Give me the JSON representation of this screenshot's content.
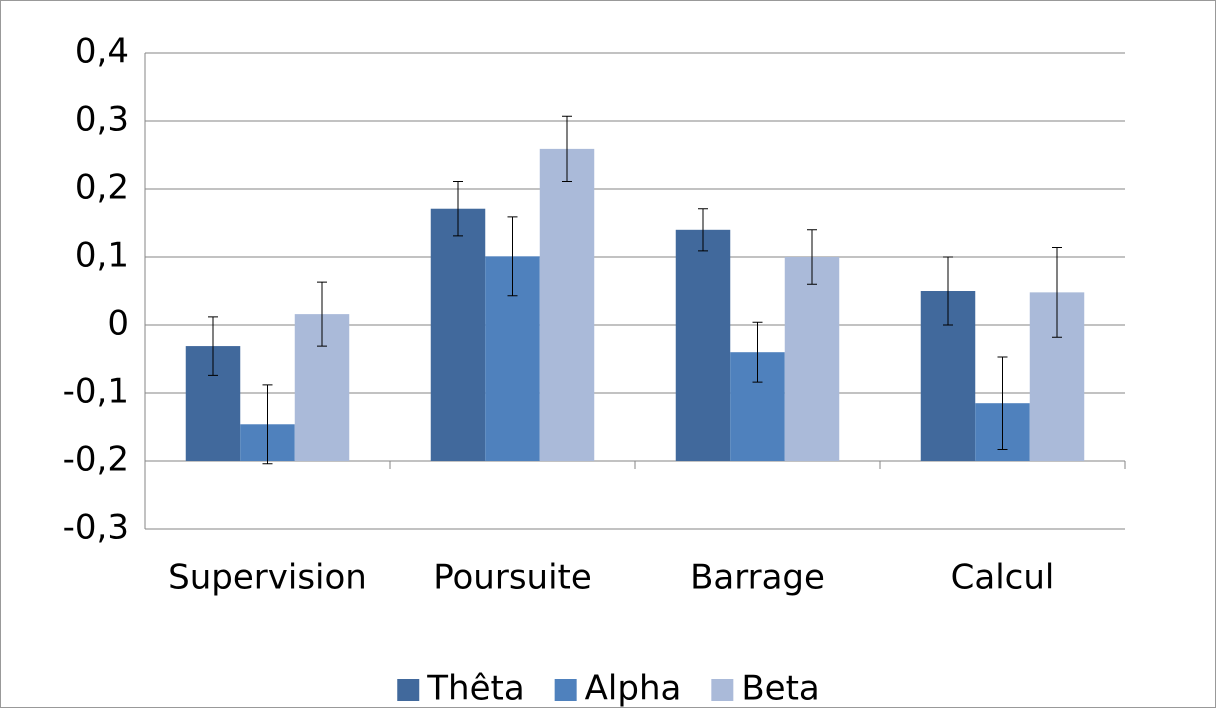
{
  "chart_data": {
    "type": "bar",
    "categories": [
      "Supervision",
      "Poursuite",
      "Barrage",
      "Calcul"
    ],
    "series": [
      {
        "name": "Thêta",
        "color": "#41699c",
        "values": [
          -0.031,
          0.171,
          0.14,
          0.05
        ],
        "errors": [
          0.043,
          0.04,
          0.031,
          0.05
        ]
      },
      {
        "name": "Alpha",
        "color": "#4f81bd",
        "values": [
          -0.146,
          0.101,
          -0.04,
          -0.115
        ],
        "errors": [
          0.058,
          0.058,
          0.044,
          0.068
        ]
      },
      {
        "name": "Beta",
        "color": "#aabad9",
        "values": [
          0.016,
          0.259,
          0.1,
          0.048
        ],
        "errors": [
          0.047,
          0.048,
          0.04,
          0.066
        ]
      }
    ],
    "ylim": [
      -0.3,
      0.4
    ],
    "yticks": [
      {
        "value": -0.3,
        "label": "-0,3"
      },
      {
        "value": -0.2,
        "label": "-0,2"
      },
      {
        "value": -0.1,
        "label": "-0,1"
      },
      0,
      {
        "value": 0.1,
        "label": "0,1"
      },
      {
        "value": 0.2,
        "label": "0,2"
      },
      {
        "value": 0.3,
        "label": "0,3"
      },
      {
        "value": 0.4,
        "label": "0,4"
      }
    ],
    "xaxis_crosses": -0.2,
    "grid": true,
    "legend": "bottom"
  }
}
